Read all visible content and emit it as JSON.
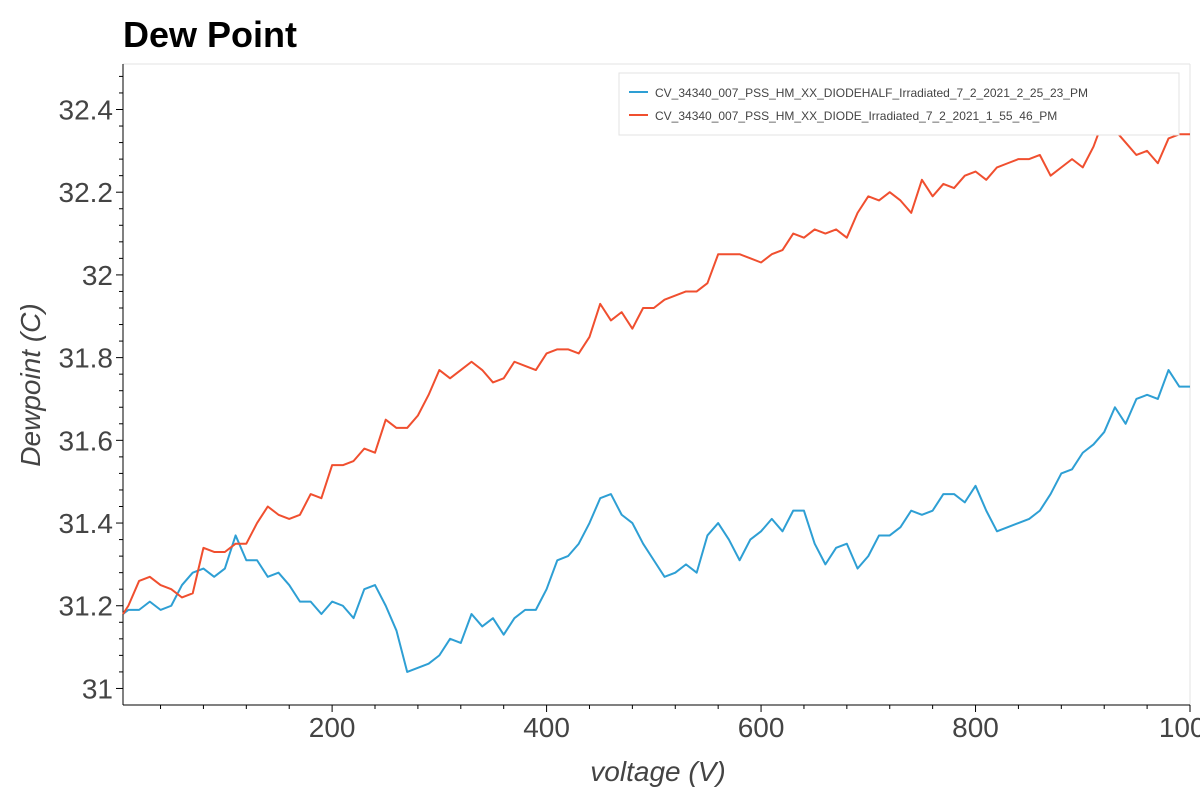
{
  "chart_data": {
    "type": "line",
    "title": "Dew Point",
    "xlabel": "voltage (V)",
    "ylabel": "Dewpoint (C)",
    "xlim": [
      5,
      1000
    ],
    "ylim": [
      30.96,
      32.51
    ],
    "x_ticks": [
      200,
      400,
      600,
      800,
      1000
    ],
    "x_tick_labels": [
      "200",
      "400",
      "600",
      "800",
      "1000"
    ],
    "y_ticks": [
      31,
      31.2,
      31.4,
      31.6,
      31.8,
      32,
      32.2,
      32.4
    ],
    "y_tick_labels": [
      "31",
      "31.2",
      "31.4",
      "31.6",
      "31.8",
      "32",
      "32.2",
      "32.4"
    ],
    "grid": false,
    "legend_position": "top-right",
    "series": [
      {
        "name": "CV_34340_007_PSS_HM_XX_DIODEHALF_Irradiated_7_2_2021_2_25_23_PM",
        "color": "#2e9fd4",
        "x": [
          5,
          10,
          20,
          30,
          40,
          50,
          60,
          70,
          80,
          90,
          100,
          110,
          120,
          130,
          140,
          150,
          160,
          170,
          180,
          190,
          200,
          210,
          220,
          230,
          240,
          250,
          260,
          270,
          280,
          290,
          300,
          310,
          320,
          330,
          340,
          350,
          360,
          370,
          380,
          390,
          400,
          410,
          420,
          430,
          440,
          450,
          460,
          470,
          480,
          490,
          500,
          510,
          520,
          530,
          540,
          550,
          560,
          570,
          580,
          590,
          600,
          610,
          620,
          630,
          640,
          650,
          660,
          670,
          680,
          690,
          700,
          710,
          720,
          730,
          740,
          750,
          760,
          770,
          780,
          790,
          800,
          810,
          820,
          830,
          840,
          850,
          860,
          870,
          880,
          890,
          900,
          910,
          920,
          930,
          940,
          950,
          960,
          970,
          980,
          990,
          1000
        ],
        "values": [
          31.18,
          31.19,
          31.19,
          31.21,
          31.19,
          31.2,
          31.25,
          31.28,
          31.29,
          31.27,
          31.29,
          31.37,
          31.31,
          31.31,
          31.27,
          31.28,
          31.25,
          31.21,
          31.21,
          31.18,
          31.21,
          31.2,
          31.17,
          31.24,
          31.25,
          31.2,
          31.14,
          31.04,
          31.05,
          31.06,
          31.08,
          31.12,
          31.11,
          31.18,
          31.15,
          31.17,
          31.13,
          31.17,
          31.19,
          31.19,
          31.24,
          31.31,
          31.32,
          31.35,
          31.4,
          31.46,
          31.47,
          31.42,
          31.4,
          31.35,
          31.31,
          31.27,
          31.28,
          31.3,
          31.28,
          31.37,
          31.4,
          31.36,
          31.31,
          31.36,
          31.38,
          31.41,
          31.38,
          31.43,
          31.43,
          31.35,
          31.3,
          31.34,
          31.35,
          31.29,
          31.32,
          31.37,
          31.37,
          31.39,
          31.43,
          31.42,
          31.43,
          31.47,
          31.47,
          31.45,
          31.49,
          31.43,
          31.38,
          31.39,
          31.4,
          31.41,
          31.43,
          31.47,
          31.52,
          31.53,
          31.57,
          31.59,
          31.62,
          31.68,
          31.64,
          31.7,
          31.71,
          31.7,
          31.77,
          31.73,
          31.73
        ]
      },
      {
        "name": "CV_34340_007_PSS_HM_XX_DIODE_Irradiated_7_2_2021_1_55_46_PM",
        "color": "#f04f2f",
        "x": [
          5,
          10,
          20,
          30,
          40,
          50,
          60,
          70,
          80,
          90,
          100,
          110,
          120,
          130,
          140,
          150,
          160,
          170,
          180,
          190,
          200,
          210,
          220,
          230,
          240,
          250,
          260,
          270,
          280,
          290,
          300,
          310,
          320,
          330,
          340,
          350,
          360,
          370,
          380,
          390,
          400,
          410,
          420,
          430,
          440,
          450,
          460,
          470,
          480,
          490,
          500,
          510,
          520,
          530,
          540,
          550,
          560,
          570,
          580,
          590,
          600,
          610,
          620,
          630,
          640,
          650,
          660,
          670,
          680,
          690,
          700,
          710,
          720,
          730,
          740,
          750,
          760,
          770,
          780,
          790,
          800,
          810,
          820,
          830,
          840,
          850,
          860,
          870,
          880,
          890,
          900,
          910,
          920,
          930,
          940,
          950,
          960,
          970,
          980,
          990,
          1000
        ],
        "values": [
          31.18,
          31.2,
          31.26,
          31.27,
          31.25,
          31.24,
          31.22,
          31.23,
          31.34,
          31.33,
          31.33,
          31.35,
          31.35,
          31.4,
          31.44,
          31.42,
          31.41,
          31.42,
          31.47,
          31.46,
          31.54,
          31.54,
          31.55,
          31.58,
          31.57,
          31.65,
          31.63,
          31.63,
          31.66,
          31.71,
          31.77,
          31.75,
          31.77,
          31.79,
          31.77,
          31.74,
          31.75,
          31.79,
          31.78,
          31.77,
          31.81,
          31.82,
          31.82,
          31.81,
          31.85,
          31.93,
          31.89,
          31.91,
          31.87,
          31.92,
          31.92,
          31.94,
          31.95,
          31.96,
          31.96,
          31.98,
          32.05,
          32.05,
          32.05,
          32.04,
          32.03,
          32.05,
          32.06,
          32.1,
          32.09,
          32.11,
          32.1,
          32.11,
          32.09,
          32.15,
          32.19,
          32.18,
          32.2,
          32.18,
          32.15,
          32.23,
          32.19,
          32.22,
          32.21,
          32.24,
          32.25,
          32.23,
          32.26,
          32.27,
          32.28,
          32.28,
          32.29,
          32.24,
          32.26,
          32.28,
          32.26,
          32.31,
          32.38,
          32.35,
          32.32,
          32.29,
          32.3,
          32.27,
          32.33,
          32.34,
          32.34
        ]
      }
    ]
  }
}
